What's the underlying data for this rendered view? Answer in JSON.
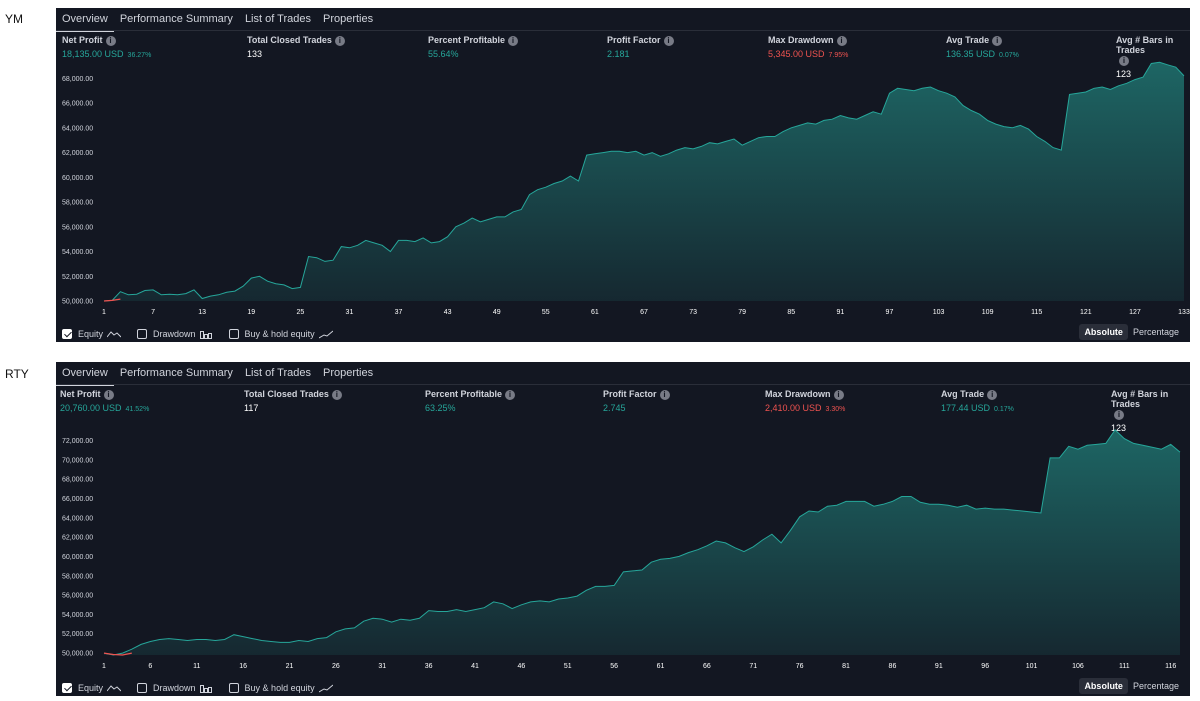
{
  "panels": [
    {
      "symbol": "YM",
      "tabs": [
        "Overview",
        "Performance Summary",
        "List of Trades",
        "Properties"
      ],
      "metrics": [
        {
          "label": "Net Profit",
          "value": "18,135.00 USD",
          "pct": "36.27%",
          "color": "#26a69a"
        },
        {
          "label": "Total Closed Trades",
          "value": "133",
          "pct": "",
          "color": "#ffffff"
        },
        {
          "label": "Percent Profitable",
          "value": "55.64%",
          "pct": "",
          "color": "#26a69a"
        },
        {
          "label": "Profit Factor",
          "value": "2.181",
          "pct": "",
          "color": "#26a69a"
        },
        {
          "label": "Max Drawdown",
          "value": "5,345.00 USD",
          "pct": "7.95%",
          "color": "#ef5350"
        },
        {
          "label": "Avg Trade",
          "value": "136.35 USD",
          "pct": "0.07%",
          "color": "#26a69a"
        },
        {
          "label": "Avg # Bars in Trades",
          "value": "123",
          "pct": "",
          "color": "#ffffff"
        }
      ],
      "legend": {
        "equity": "Equity",
        "drawdown": "Drawdown",
        "buy_hold": "Buy & hold equity"
      },
      "scale": {
        "absolute": "Absolute",
        "percentage": "Percentage"
      }
    },
    {
      "symbol": "RTY",
      "tabs": [
        "Overview",
        "Performance Summary",
        "List of Trades",
        "Properties"
      ],
      "metrics": [
        {
          "label": "Net Profit",
          "value": "20,760.00 USD",
          "pct": "41.52%",
          "color": "#26a69a"
        },
        {
          "label": "Total Closed Trades",
          "value": "117",
          "pct": "",
          "color": "#ffffff"
        },
        {
          "label": "Percent Profitable",
          "value": "63.25%",
          "pct": "",
          "color": "#26a69a"
        },
        {
          "label": "Profit Factor",
          "value": "2.745",
          "pct": "",
          "color": "#26a69a"
        },
        {
          "label": "Max Drawdown",
          "value": "2,410.00 USD",
          "pct": "3.30%",
          "color": "#ef5350"
        },
        {
          "label": "Avg Trade",
          "value": "177.44 USD",
          "pct": "0.17%",
          "color": "#26a69a"
        },
        {
          "label": "Avg # Bars in Trades",
          "value": "123",
          "pct": "",
          "color": "#ffffff"
        }
      ],
      "legend": {
        "equity": "Equity",
        "drawdown": "Drawdown",
        "buy_hold": "Buy & hold equity"
      },
      "scale": {
        "absolute": "Absolute",
        "percentage": "Percentage"
      }
    }
  ],
  "colors": {
    "background": "#131722",
    "profit": "#26a69a",
    "loss": "#ef5350",
    "text": "#d1d4dc"
  },
  "chart_data": [
    {
      "type": "area",
      "ylim": [
        50000,
        69000
      ],
      "yticks": [
        "50,000.00",
        "52,000.00",
        "54,000.00",
        "56,000.00",
        "58,000.00",
        "60,000.00",
        "62,000.00",
        "64,000.00",
        "66,000.00",
        "68,000.00"
      ],
      "xticks": [
        "1",
        "7",
        "13",
        "19",
        "25",
        "31",
        "37",
        "43",
        "49",
        "55",
        "61",
        "67",
        "73",
        "79",
        "85",
        "91",
        "97",
        "103",
        "109",
        "115",
        "121",
        "127",
        "133"
      ],
      "x": [
        1,
        2,
        3,
        4,
        5,
        6,
        7,
        8,
        9,
        10,
        11,
        12,
        13,
        14,
        15,
        16,
        17,
        18,
        19,
        20,
        21,
        22,
        23,
        24,
        25,
        26,
        27,
        28,
        29,
        30,
        31,
        32,
        33,
        34,
        35,
        36,
        37,
        38,
        39,
        40,
        41,
        42,
        43,
        44,
        45,
        46,
        47,
        48,
        49,
        50,
        51,
        52,
        53,
        54,
        55,
        56,
        57,
        58,
        59,
        60,
        61,
        62,
        63,
        64,
        65,
        66,
        67,
        68,
        69,
        70,
        71,
        72,
        73,
        74,
        75,
        76,
        77,
        78,
        79,
        80,
        81,
        82,
        83,
        84,
        85,
        86,
        87,
        88,
        89,
        90,
        91,
        92,
        93,
        94,
        95,
        96,
        97,
        98,
        99,
        100,
        101,
        102,
        103,
        104,
        105,
        106,
        107,
        108,
        109,
        110,
        111,
        112,
        113,
        114,
        115,
        116,
        117,
        118,
        119,
        120,
        121,
        122,
        123,
        124,
        125,
        126,
        127,
        128,
        129,
        130,
        131,
        132,
        133
      ],
      "y": [
        50000,
        50050,
        50750,
        50500,
        50550,
        50850,
        50900,
        50500,
        50550,
        50500,
        50600,
        50900,
        50200,
        50400,
        50500,
        50700,
        50800,
        51200,
        51850,
        52000,
        51600,
        51400,
        51300,
        51000,
        51100,
        53600,
        53500,
        53200,
        53300,
        54400,
        54300,
        54500,
        54900,
        54700,
        54500,
        54000,
        54900,
        54900,
        54800,
        55100,
        54700,
        54800,
        55200,
        56000,
        56300,
        56700,
        56400,
        56600,
        56800,
        56800,
        57200,
        57400,
        58600,
        59000,
        59200,
        59500,
        59700,
        60100,
        59700,
        61800,
        61900,
        62000,
        62100,
        62100,
        62000,
        62100,
        61800,
        62000,
        61700,
        61900,
        62200,
        62400,
        62300,
        62500,
        62800,
        62700,
        62900,
        63100,
        62600,
        62900,
        63200,
        63300,
        63300,
        63700,
        64000,
        64200,
        64400,
        64300,
        64600,
        64700,
        65000,
        64800,
        64700,
        65000,
        65300,
        65100,
        66800,
        67200,
        67100,
        67000,
        67200,
        67300,
        67000,
        66800,
        66500,
        65800,
        65400,
        65100,
        64600,
        64300,
        64100,
        64000,
        64200,
        63900,
        63300,
        62900,
        62400,
        62200,
        66700,
        66800,
        66900,
        67200,
        67300,
        67100,
        67400,
        67600,
        67900,
        68100,
        69200,
        69300,
        69100,
        68900,
        68200
      ],
      "drawdown_start": [
        [
          1,
          50000
        ],
        [
          2,
          50050
        ],
        [
          3,
          50150
        ]
      ]
    },
    {
      "type": "area",
      "ylim": [
        49800,
        73500
      ],
      "yticks": [
        "50,000.00",
        "52,000.00",
        "54,000.00",
        "56,000.00",
        "58,000.00",
        "60,000.00",
        "62,000.00",
        "64,000.00",
        "66,000.00",
        "68,000.00",
        "70,000.00",
        "72,000.00"
      ],
      "xticks": [
        "1",
        "6",
        "11",
        "16",
        "21",
        "26",
        "31",
        "36",
        "41",
        "46",
        "51",
        "56",
        "61",
        "66",
        "71",
        "76",
        "81",
        "86",
        "91",
        "96",
        "101",
        "106",
        "111",
        "116"
      ],
      "x": [
        1,
        2,
        3,
        4,
        5,
        6,
        7,
        8,
        9,
        10,
        11,
        12,
        13,
        14,
        15,
        16,
        17,
        18,
        19,
        20,
        21,
        22,
        23,
        24,
        25,
        26,
        27,
        28,
        29,
        30,
        31,
        32,
        33,
        34,
        35,
        36,
        37,
        38,
        39,
        40,
        41,
        42,
        43,
        44,
        45,
        46,
        47,
        48,
        49,
        50,
        51,
        52,
        53,
        54,
        55,
        56,
        57,
        58,
        59,
        60,
        61,
        62,
        63,
        64,
        65,
        66,
        67,
        68,
        69,
        70,
        71,
        72,
        73,
        74,
        75,
        76,
        77,
        78,
        79,
        80,
        81,
        82,
        83,
        84,
        85,
        86,
        87,
        88,
        89,
        90,
        91,
        92,
        93,
        94,
        95,
        96,
        97,
        98,
        99,
        100,
        101,
        102,
        103,
        104,
        105,
        106,
        107,
        108,
        109,
        110,
        111,
        112,
        113,
        114,
        115,
        116,
        117
      ],
      "y": [
        50000,
        49800,
        50000,
        50400,
        50900,
        51200,
        51400,
        51500,
        51400,
        51300,
        51400,
        51400,
        51300,
        51400,
        51900,
        51700,
        51500,
        51300,
        51200,
        51100,
        51100,
        51300,
        51200,
        51500,
        51600,
        52200,
        52500,
        52600,
        53300,
        53600,
        53500,
        53200,
        53500,
        53400,
        53600,
        54400,
        54300,
        54300,
        54500,
        54300,
        54500,
        54700,
        55300,
        55100,
        54600,
        55000,
        55300,
        55400,
        55300,
        55600,
        55700,
        55900,
        56500,
        56900,
        56900,
        57000,
        58400,
        58500,
        58600,
        59400,
        59700,
        59800,
        60000,
        60400,
        60700,
        61100,
        61600,
        61400,
        60900,
        60500,
        61000,
        61700,
        62300,
        61400,
        62700,
        64100,
        64700,
        64600,
        65200,
        65300,
        65700,
        65700,
        65700,
        65200,
        65400,
        65700,
        66200,
        66200,
        65600,
        65400,
        65400,
        65300,
        65100,
        65300,
        64900,
        65000,
        64900,
        64900,
        64800,
        64700,
        64600,
        64500,
        70200,
        70200,
        71400,
        71100,
        71500,
        71600,
        71700,
        73100,
        72200,
        71700,
        71500,
        71300,
        71100,
        71600,
        70800
      ],
      "drawdown_start": [
        [
          1,
          50000
        ],
        [
          2,
          49850
        ],
        [
          3,
          49800
        ],
        [
          4,
          50000
        ]
      ]
    }
  ]
}
